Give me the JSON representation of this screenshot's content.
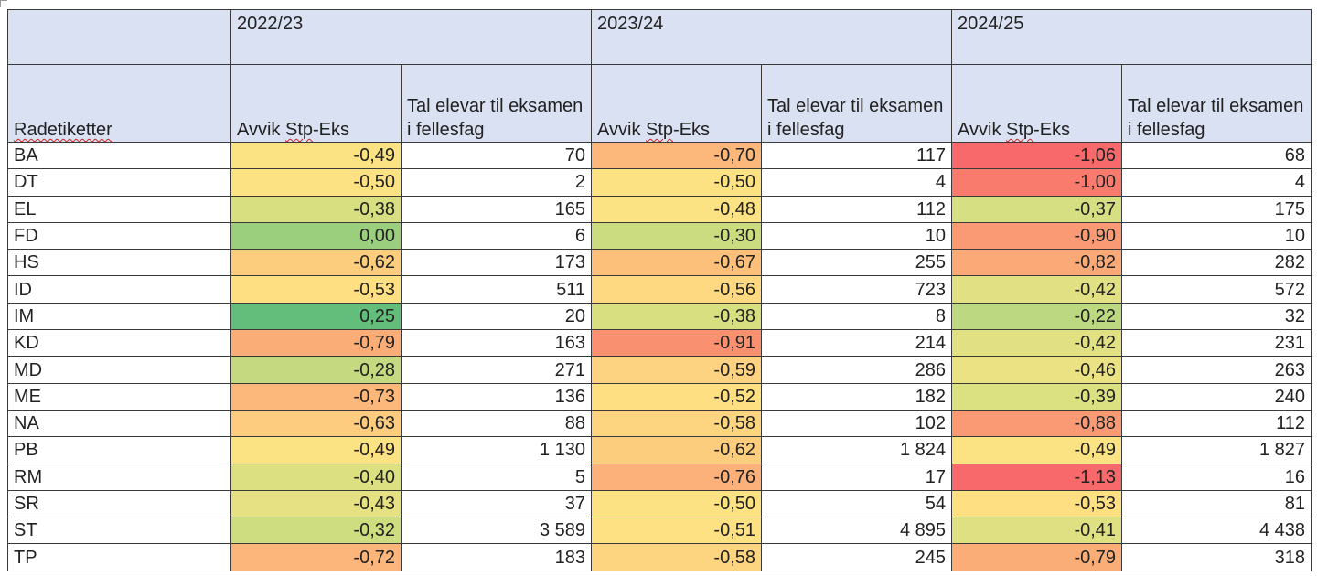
{
  "header": {
    "row_label_title": "Radetiketter",
    "years": [
      "2022/23",
      "2023/24",
      "2024/25"
    ],
    "col_deviation": "Avvik Stp-Eks",
    "col_count": "Tal elevar til eksamen i fellesfag"
  },
  "rows": [
    {
      "label": "BA",
      "v": [
        [
          "-0,49",
          "70"
        ],
        [
          "-0,70",
          "117"
        ],
        [
          "-1,06",
          "68"
        ]
      ],
      "c": [
        "#fbe383",
        "#fcb87a",
        "#f8696b"
      ]
    },
    {
      "label": "DT",
      "v": [
        [
          "-0,50",
          "2"
        ],
        [
          "-0,50",
          "4"
        ],
        [
          "-1,00",
          "4"
        ]
      ],
      "c": [
        "#fde283",
        "#fde283",
        "#f87b6e"
      ]
    },
    {
      "label": "EL",
      "v": [
        [
          "-0,38",
          "165"
        ],
        [
          "-0,48",
          "112"
        ],
        [
          "-0,37",
          "175"
        ]
      ],
      "c": [
        "#d8df81",
        "#fbe383",
        "#d6df81"
      ]
    },
    {
      "label": "FD",
      "v": [
        [
          "0,00",
          "6"
        ],
        [
          "-0,30",
          "10"
        ],
        [
          "-0,90",
          "10"
        ]
      ],
      "c": [
        "#9bcf7d",
        "#cbdc80",
        "#fa9a74"
      ]
    },
    {
      "label": "HS",
      "v": [
        [
          "-0,62",
          "173"
        ],
        [
          "-0,67",
          "255"
        ],
        [
          "-0,82",
          "282"
        ]
      ],
      "c": [
        "#fdcd7e",
        "#fcc07b",
        "#fbaa77"
      ]
    },
    {
      "label": "ID",
      "v": [
        [
          "-0,53",
          "511"
        ],
        [
          "-0,56",
          "723"
        ],
        [
          "-0,42",
          "572"
        ]
      ],
      "c": [
        "#fedf82",
        "#fed981",
        "#e1e183"
      ]
    },
    {
      "label": "IM",
      "v": [
        [
          "0,25",
          "20"
        ],
        [
          "-0,38",
          "8"
        ],
        [
          "-0,22",
          "32"
        ]
      ],
      "c": [
        "#63be7b",
        "#d8df81",
        "#bcd880"
      ]
    },
    {
      "label": "KD",
      "v": [
        [
          "-0,79",
          "163"
        ],
        [
          "-0,91",
          "214"
        ],
        [
          "-0,42",
          "231"
        ]
      ],
      "c": [
        "#fbad78",
        "#f99171",
        "#e1e183"
      ]
    },
    {
      "label": "MD",
      "v": [
        [
          "-0,28",
          "271"
        ],
        [
          "-0,59",
          "286"
        ],
        [
          "-0,46",
          "263"
        ]
      ],
      "c": [
        "#c5da80",
        "#fdd280",
        "#ebe283"
      ]
    },
    {
      "label": "ME",
      "v": [
        [
          "-0,73",
          "136"
        ],
        [
          "-0,52",
          "182"
        ],
        [
          "-0,39",
          "240"
        ]
      ],
      "c": [
        "#fcb77a",
        "#fee082",
        "#dbe081"
      ]
    },
    {
      "label": "NA",
      "v": [
        [
          "-0,63",
          "88"
        ],
        [
          "-0,58",
          "102"
        ],
        [
          "-0,88",
          "112"
        ]
      ],
      "c": [
        "#fdcc7e",
        "#fdd581",
        "#fa9a74"
      ]
    },
    {
      "label": "PB",
      "v": [
        [
          "-0,49",
          "1 130"
        ],
        [
          "-0,62",
          "1 824"
        ],
        [
          "-0,49",
          "1 827"
        ]
      ],
      "c": [
        "#fbe383",
        "#fdcd7e",
        "#fbe383"
      ]
    },
    {
      "label": "RM",
      "v": [
        [
          "-0,40",
          "5"
        ],
        [
          "-0,76",
          "17"
        ],
        [
          "-1,13",
          "16"
        ]
      ],
      "c": [
        "#dce081",
        "#fcb07a",
        "#f8696b"
      ]
    },
    {
      "label": "SR",
      "v": [
        [
          "-0,43",
          "37"
        ],
        [
          "-0,50",
          "54"
        ],
        [
          "-0,53",
          "81"
        ]
      ],
      "c": [
        "#e6e183",
        "#fde283",
        "#fedf82"
      ]
    },
    {
      "label": "ST",
      "v": [
        [
          "-0,32",
          "3 589"
        ],
        [
          "-0,51",
          "4 895"
        ],
        [
          "-0,41",
          "4 438"
        ]
      ],
      "c": [
        "#cedd80",
        "#fee183",
        "#dee081"
      ]
    },
    {
      "label": "TP",
      "v": [
        [
          "-0,72",
          "183"
        ],
        [
          "-0,58",
          "245"
        ],
        [
          "-0,79",
          "318"
        ]
      ],
      "c": [
        "#fcb57a",
        "#fdd581",
        "#fbad78"
      ]
    }
  ]
}
